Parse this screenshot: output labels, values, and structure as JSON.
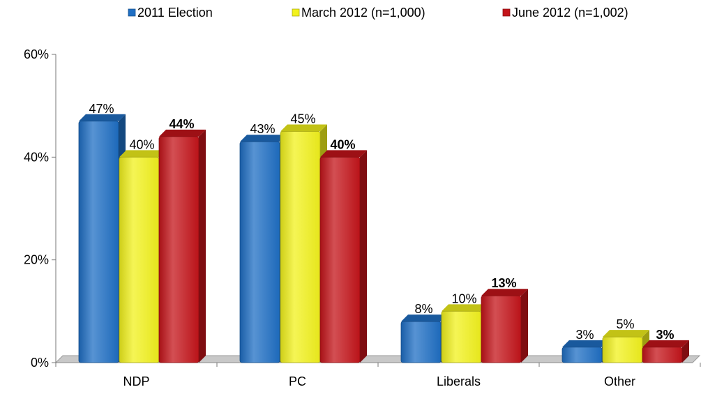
{
  "chart_data": {
    "type": "bar",
    "categories": [
      "NDP",
      "PC",
      "Liberals",
      "Other"
    ],
    "series": [
      {
        "name": "2011 Election",
        "values": [
          47,
          43,
          8,
          3
        ],
        "labels": [
          "47%",
          "43%",
          "8%",
          "3%"
        ],
        "color": "#1f6fc4",
        "bold_labels": false
      },
      {
        "name": "March 2012 (n=1,000)",
        "values": [
          40,
          45,
          10,
          5
        ],
        "labels": [
          "40%",
          "45%",
          "10%",
          "5%"
        ],
        "color": "#f2f21c",
        "bold_labels": false
      },
      {
        "name": "June 2012 (n=1,002)",
        "values": [
          44,
          40,
          13,
          3
        ],
        "labels": [
          "44%",
          "40%",
          "13%",
          "3%"
        ],
        "color": "#c4141a",
        "bold_labels": true
      }
    ],
    "ylim": [
      0,
      60
    ],
    "y_ticks": [
      0,
      20,
      40,
      60
    ],
    "y_tick_labels": [
      "0%",
      "20%",
      "40%",
      "60%"
    ],
    "legend_position": "top",
    "grid": false,
    "three_d": true
  }
}
